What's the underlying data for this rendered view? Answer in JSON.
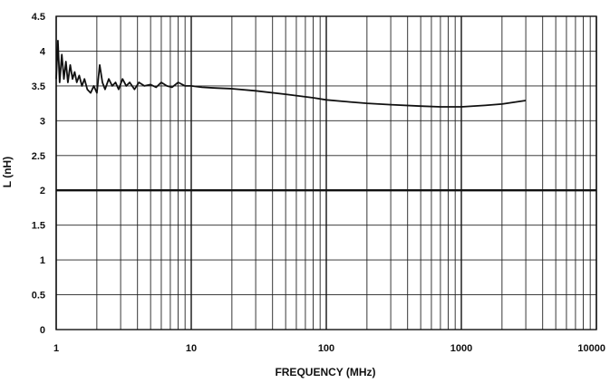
{
  "chart_data": {
    "type": "line",
    "title": "",
    "xlabel": "FREQUENCY (MHz)",
    "ylabel": "L (nH)",
    "x_scale": "log",
    "xlim": [
      1,
      10000
    ],
    "ylim": [
      0,
      4.5
    ],
    "x_ticks": [
      1,
      10,
      100,
      1000,
      10000
    ],
    "x_tick_labels": [
      "1",
      "10",
      "100",
      "1000",
      "10000"
    ],
    "y_ticks": [
      0,
      0.5,
      1,
      1.5,
      2,
      2.5,
      3,
      3.5,
      4,
      4.5
    ],
    "y_tick_labels": [
      "0",
      "0.5",
      "1",
      "1.5",
      "2",
      "2.5",
      "3",
      "3.5",
      "4",
      "4.5"
    ],
    "grid": true,
    "reference_line_y": 2,
    "series": [
      {
        "color": "#111111",
        "x": [
          1.0,
          1.03,
          1.06,
          1.1,
          1.14,
          1.18,
          1.22,
          1.27,
          1.32,
          1.37,
          1.42,
          1.48,
          1.55,
          1.62,
          1.7,
          1.8,
          1.9,
          2.0,
          2.1,
          2.2,
          2.3,
          2.45,
          2.6,
          2.75,
          2.9,
          3.1,
          3.3,
          3.5,
          3.8,
          4.1,
          4.5,
          5.0,
          5.5,
          6.0,
          6.6,
          7.2,
          8.0,
          9.0,
          10,
          12,
          15,
          20,
          30,
          50,
          80,
          100,
          150,
          200,
          300,
          500,
          700,
          1000,
          1500,
          2000,
          3000
        ],
        "y": [
          3.6,
          4.15,
          3.55,
          3.95,
          3.6,
          3.85,
          3.55,
          3.8,
          3.6,
          3.7,
          3.55,
          3.65,
          3.5,
          3.6,
          3.45,
          3.4,
          3.5,
          3.4,
          3.8,
          3.55,
          3.45,
          3.6,
          3.5,
          3.55,
          3.45,
          3.6,
          3.5,
          3.55,
          3.45,
          3.55,
          3.5,
          3.52,
          3.48,
          3.55,
          3.5,
          3.48,
          3.55,
          3.5,
          3.5,
          3.48,
          3.47,
          3.46,
          3.43,
          3.38,
          3.33,
          3.3,
          3.27,
          3.25,
          3.23,
          3.21,
          3.2,
          3.2,
          3.22,
          3.24,
          3.29
        ]
      }
    ]
  }
}
